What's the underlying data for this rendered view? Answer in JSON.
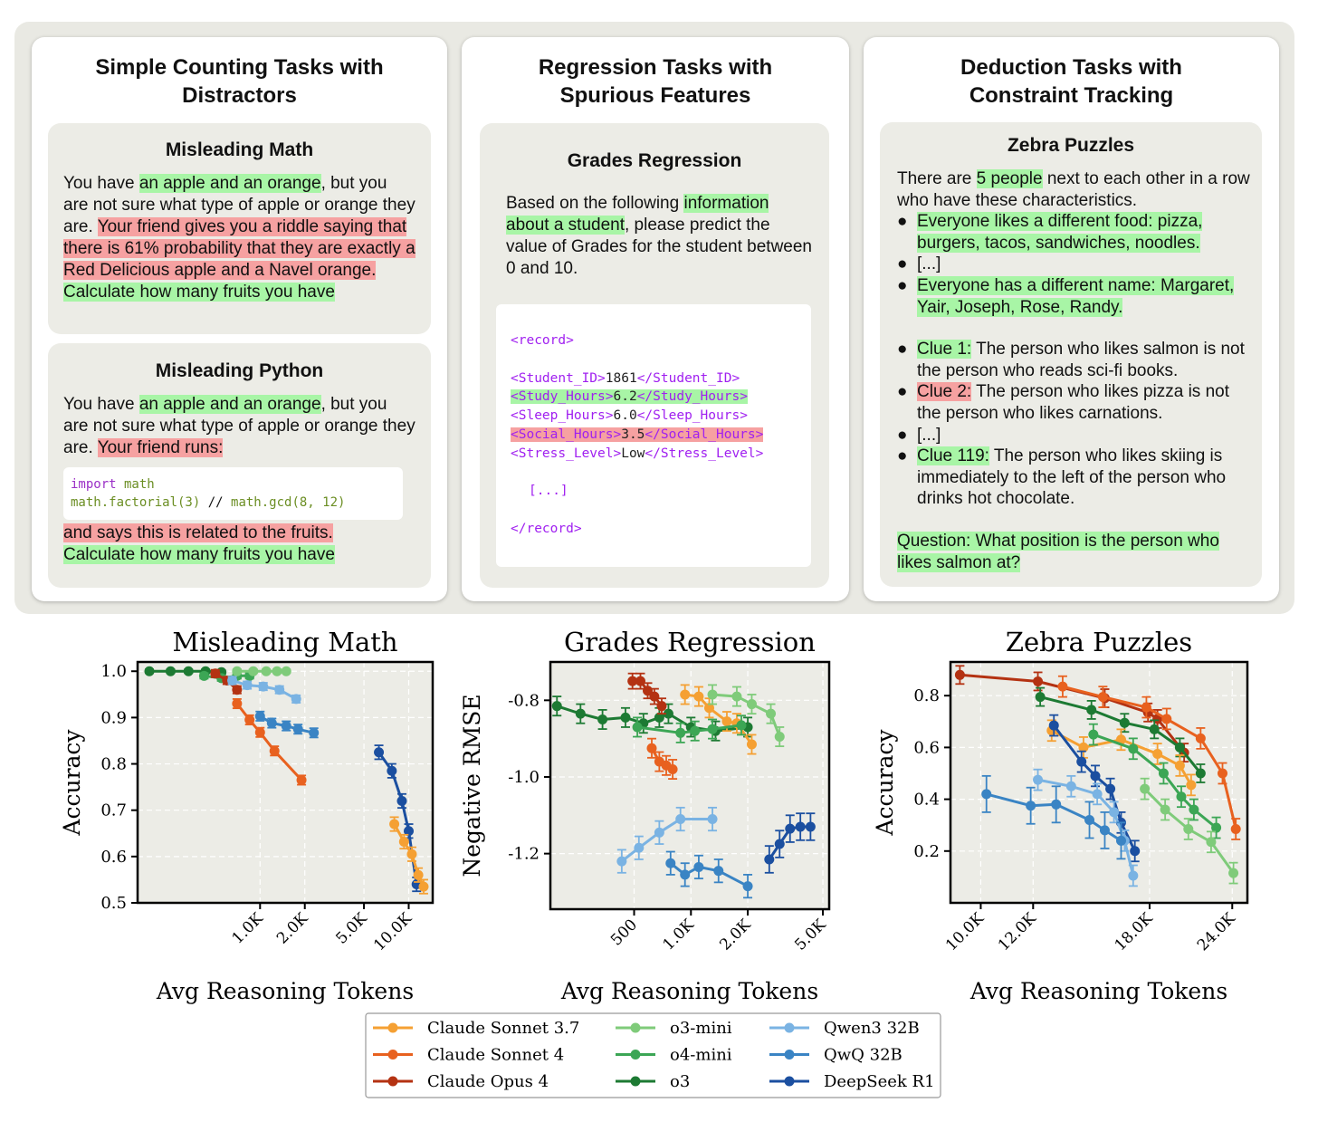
{
  "cards": {
    "counting": {
      "title_line1": "Simple Counting Tasks with",
      "title_line2": "Distractors",
      "math": {
        "title": "Misleading Math",
        "t1": "You have ",
        "t2": "an apple and an orange",
        "t3": ", but you are not sure what type of apple or orange they are. ",
        "t4": "Your friend gives you a riddle saying that there is 61% probability that they are exactly a Red Delicious apple and a Navel orange.",
        "t5": " ",
        "t6": "Calculate how many fruits you have"
      },
      "python": {
        "title": "Misleading Python",
        "t1": "You have ",
        "t2": "an apple and an orange",
        "t3": ", but you are not sure what type of apple or orange they are. ",
        "t4": "Your friend runs:",
        "code_kw": "import",
        "code_mod": " math",
        "code_l2a": "math.factorial(3)",
        "code_l2b": " // ",
        "code_l2c": "math.gcd(8, 12)",
        "t5": "and says this is related to the fruits.",
        "t6": "Calculate how many fruits you have"
      }
    },
    "regression": {
      "title_line1": "Regression Tasks with",
      "title_line2": "Spurious Features",
      "box_title": "Grades Regression",
      "t1": "Based on the following ",
      "t2": "information about a student",
      "t3": ", please predict the value of Grades for the student between 0 and 10.",
      "rec_open": "<record>",
      "lines": [
        {
          "o": "<Student_ID>",
          "v": "1861",
          "c": "</Student_ID>",
          "hl": ""
        },
        {
          "o": "<Study_Hours>",
          "v": "6.2",
          "c": "</Study_Hours>",
          "hl": "g"
        },
        {
          "o": "<Sleep_Hours>",
          "v": "6.0",
          "c": "</Sleep_Hours>",
          "hl": ""
        },
        {
          "o": "<Social_Hours>",
          "v": "3.5",
          "c": "</Social_Hours>",
          "hl": "r"
        },
        {
          "o": "<Stress_Level>",
          "v": "Low",
          "c": "</Stress_Level>",
          "hl": ""
        }
      ],
      "ellipsis": "[...]",
      "rec_close": "</record>"
    },
    "deduction": {
      "title_line1": "Deduction Tasks with",
      "title_line2": "Constraint Tracking",
      "box_title": "Zebra Puzzles",
      "t1": "There are ",
      "t2": "5 people",
      "t3": " next to each other in a row who have these characteristics.",
      "b1": "Everyone likes a different food: pizza, burgers, tacos, sandwiches, noodles.",
      "b2": "[...]",
      "b3": "Everyone has a different name: Margaret, Yair, Joseph, Rose, Randy.",
      "c1a": "Clue 1:",
      "c1b": " The person who likes salmon is not the person who reads sci-fi books.",
      "c2a": "Clue 2:",
      "c2b": " The person who likes pizza is not the person who likes carnations.",
      "c3": "[...]",
      "c4a": "Clue 119:",
      "c4b": " The person who likes skiing is immediately to the left of the person who drinks hot chocolate.",
      "q": "Question: What position is the person who likes salmon at?",
      "bullet": "●"
    }
  },
  "colors": {
    "Claude Sonnet 3.7": "#f5a033",
    "Claude Sonnet 4": "#e8611f",
    "Claude Opus 4": "#b43212",
    "o3-mini": "#7fcb7a",
    "o4-mini": "#3ca655",
    "o3": "#1d7a33",
    "Qwen3 32B": "#7ab3e3",
    "QwQ 32B": "#3a84c4",
    "DeepSeek R1": "#1b4fa0"
  },
  "legend": [
    "Claude Sonnet 3.7",
    "o3-mini",
    "Qwen3 32B",
    "Claude Sonnet 4",
    "o4-mini",
    "QwQ 32B",
    "Claude Opus 4",
    "o3",
    "DeepSeek R1"
  ],
  "chart_data": [
    {
      "type": "line",
      "title": "Misleading Math",
      "xlabel": "Avg Reasoning Tokens",
      "ylabel": "Accuracy",
      "xscale": "log",
      "xlim": [
        150,
        14500
      ],
      "ylim": [
        0.5,
        1.02
      ],
      "xticks": [
        {
          "v": 1000,
          "l": "1.0K"
        },
        {
          "v": 2000,
          "l": "2.0K"
        },
        {
          "v": 5000,
          "l": "5.0K"
        },
        {
          "v": 10000,
          "l": "10.0K"
        }
      ],
      "yticks": [
        {
          "v": 1.0,
          "l": "1.0"
        },
        {
          "v": 0.9,
          "l": "0.9"
        },
        {
          "v": 0.8,
          "l": "0.8"
        },
        {
          "v": 0.7,
          "l": "0.7"
        },
        {
          "v": 0.6,
          "l": "0.6"
        },
        {
          "v": 0.5,
          "l": "0.5"
        }
      ],
      "series": [
        {
          "name": "o3",
          "x": [
            180,
            250,
            330,
            430,
            550
          ],
          "y": [
            1.0,
            1.0,
            1.0,
            1.0,
            0.998
          ],
          "err": 0.004
        },
        {
          "name": "o4-mini",
          "x": [
            420,
            550,
            700,
            850
          ],
          "y": [
            0.99,
            0.985,
            0.99,
            0.99
          ],
          "err": 0.006
        },
        {
          "name": "o3-mini",
          "x": [
            700,
            900,
            1100,
            1300,
            1500
          ],
          "y": [
            1.0,
            1.0,
            1.0,
            1.0,
            1.0
          ],
          "err": 0.004
        },
        {
          "name": "Claude Opus 4",
          "x": [
            500,
            600,
            700
          ],
          "y": [
            0.995,
            0.98,
            0.96
          ],
          "err": 0.008
        },
        {
          "name": "Claude Sonnet 4",
          "x": [
            700,
            850,
            1000,
            1250,
            1900
          ],
          "y": [
            0.93,
            0.895,
            0.868,
            0.828,
            0.765
          ],
          "err": 0.01
        },
        {
          "name": "Qwen3 32B",
          "x": [
            650,
            820,
            1050,
            1350,
            1750
          ],
          "y": [
            0.98,
            0.97,
            0.967,
            0.96,
            0.94
          ],
          "err": 0.008
        },
        {
          "name": "QwQ 32B",
          "x": [
            1000,
            1200,
            1500,
            1800,
            2300
          ],
          "y": [
            0.903,
            0.888,
            0.882,
            0.875,
            0.867
          ],
          "err": 0.01
        },
        {
          "name": "DeepSeek R1",
          "x": [
            6300,
            7700,
            9000,
            10000,
            11300
          ],
          "y": [
            0.825,
            0.785,
            0.72,
            0.655,
            0.54
          ],
          "err": 0.015
        },
        {
          "name": "Claude Sonnet 3.7",
          "x": [
            8000,
            9300,
            10500,
            11600,
            12600
          ],
          "y": [
            0.67,
            0.632,
            0.605,
            0.56,
            0.535
          ],
          "err": 0.015
        }
      ]
    },
    {
      "type": "line",
      "title": "Grades Regression",
      "xlabel": "Avg Reasoning Tokens",
      "ylabel": "Negative RMSE",
      "xscale": "log",
      "xlim": [
        180,
        5400
      ],
      "ylim": [
        -1.345,
        -0.7
      ],
      "xticks": [
        {
          "v": 500,
          "l": "500"
        },
        {
          "v": 1000,
          "l": "1.0K"
        },
        {
          "v": 2000,
          "l": "2.0K"
        },
        {
          "v": 5000,
          "l": "5.0K"
        }
      ],
      "yticks": [
        {
          "v": -0.8,
          "l": "-0.8"
        },
        {
          "v": -1.0,
          "l": "-1.0"
        },
        {
          "v": -1.2,
          "l": "-1.2"
        }
      ],
      "series": [
        {
          "name": "o3",
          "x": [
            195,
            260,
            340,
            450,
            560,
            680,
            760,
            1000,
            1350,
            2000
          ],
          "y": [
            -0.815,
            -0.835,
            -0.85,
            -0.845,
            -0.86,
            -0.845,
            -0.835,
            -0.87,
            -0.88,
            -0.87
          ],
          "err": 0.025
        },
        {
          "name": "Claude Opus 4",
          "x": [
            490,
            540,
            590,
            640,
            700
          ],
          "y": [
            -0.75,
            -0.75,
            -0.775,
            -0.79,
            -0.815
          ],
          "err": 0.02
        },
        {
          "name": "Claude Sonnet 4",
          "x": [
            620,
            680,
            740,
            800
          ],
          "y": [
            -0.925,
            -0.96,
            -0.97,
            -0.98
          ],
          "err": 0.025
        },
        {
          "name": "Claude Sonnet 3.7",
          "x": [
            930,
            1100,
            1250,
            1550,
            1750,
            2100
          ],
          "y": [
            -0.785,
            -0.79,
            -0.82,
            -0.855,
            -0.86,
            -0.915
          ],
          "err": 0.025
        },
        {
          "name": "o3-mini",
          "x": [
            1300,
            1750,
            2100,
            2650,
            2950
          ],
          "y": [
            -0.785,
            -0.79,
            -0.81,
            -0.835,
            -0.895
          ],
          "err": 0.025
        },
        {
          "name": "o4-mini",
          "x": [
            520,
            880,
            1050,
            1300,
            1850
          ],
          "y": [
            -0.87,
            -0.885,
            -0.88,
            -0.875,
            -0.865
          ],
          "err": 0.025
        },
        {
          "name": "Qwen3 32B",
          "x": [
            430,
            530,
            680,
            880,
            1300
          ],
          "y": [
            -1.22,
            -1.185,
            -1.145,
            -1.11,
            -1.11
          ],
          "err": 0.03
        },
        {
          "name": "QwQ 32B",
          "x": [
            780,
            930,
            1100,
            1400,
            2000
          ],
          "y": [
            -1.225,
            -1.255,
            -1.235,
            -1.245,
            -1.285
          ],
          "err": 0.03
        },
        {
          "name": "DeepSeek R1",
          "x": [
            2600,
            2950,
            3350,
            3800,
            4300
          ],
          "y": [
            -1.215,
            -1.175,
            -1.135,
            -1.13,
            -1.13
          ],
          "err": 0.035
        }
      ]
    },
    {
      "type": "line",
      "title": "Zebra Puzzles",
      "xlabel": "Avg Reasoning Tokens",
      "ylabel": "Accuracy",
      "xscale": "log",
      "xlim": [
        9000,
        25300
      ],
      "ylim": [
        0.0,
        0.93
      ],
      "xticks": [
        {
          "v": 10000,
          "l": "10.0K"
        },
        {
          "v": 12000,
          "l": "12.0K"
        },
        {
          "v": 18000,
          "l": "18.0K"
        },
        {
          "v": 24000,
          "l": "24.0K"
        }
      ],
      "yticks": [
        {
          "v": 0.8,
          "l": "0.8"
        },
        {
          "v": 0.6,
          "l": "0.6"
        },
        {
          "v": 0.4,
          "l": "0.4"
        },
        {
          "v": 0.2,
          "l": "0.2"
        }
      ],
      "series": [
        {
          "name": "Claude Opus 4",
          "x": [
            9300,
            12200,
            15400,
            17900,
            18500,
            20300
          ],
          "y": [
            0.88,
            0.855,
            0.79,
            0.735,
            0.71,
            0.58
          ],
          "err": 0.035
        },
        {
          "name": "Claude Sonnet 4",
          "x": [
            13300,
            15300,
            17800,
            19100,
            21500,
            23200,
            24300
          ],
          "y": [
            0.835,
            0.795,
            0.755,
            0.71,
            0.635,
            0.5,
            0.285
          ],
          "err": 0.04
        },
        {
          "name": "o3",
          "x": [
            12300,
            14700,
            16500,
            18300,
            20000,
            21500
          ],
          "y": [
            0.795,
            0.745,
            0.695,
            0.67,
            0.6,
            0.5
          ],
          "err": 0.035
        },
        {
          "name": "Claude Sonnet 3.7",
          "x": [
            12800,
            14300,
            16300,
            18500,
            20000,
            20800
          ],
          "y": [
            0.665,
            0.6,
            0.63,
            0.575,
            0.53,
            0.455
          ],
          "err": 0.04
        },
        {
          "name": "o4-mini",
          "x": [
            14800,
            17000,
            18900,
            20100,
            21000,
            22700
          ],
          "y": [
            0.65,
            0.595,
            0.5,
            0.41,
            0.36,
            0.29
          ],
          "err": 0.04
        },
        {
          "name": "o3-mini",
          "x": [
            17700,
            19000,
            20600,
            22300,
            24100
          ],
          "y": [
            0.44,
            0.36,
            0.285,
            0.235,
            0.115
          ],
          "err": 0.04
        },
        {
          "name": "DeepSeek R1",
          "x": [
            12900,
            14200,
            14900,
            15700,
            16300,
            17100
          ],
          "y": [
            0.685,
            0.545,
            0.49,
            0.44,
            0.31,
            0.2
          ],
          "err": 0.04
        },
        {
          "name": "Qwen3 32B",
          "x": [
            12200,
            13700,
            15000,
            15900,
            16500,
            17000
          ],
          "y": [
            0.475,
            0.45,
            0.42,
            0.35,
            0.24,
            0.105
          ],
          "err": 0.04
        },
        {
          "name": "QwQ 32B",
          "x": [
            10200,
            11900,
            13000,
            14600,
            15400,
            16300
          ],
          "y": [
            0.42,
            0.375,
            0.38,
            0.32,
            0.28,
            0.24
          ],
          "err": 0.07
        }
      ]
    }
  ]
}
